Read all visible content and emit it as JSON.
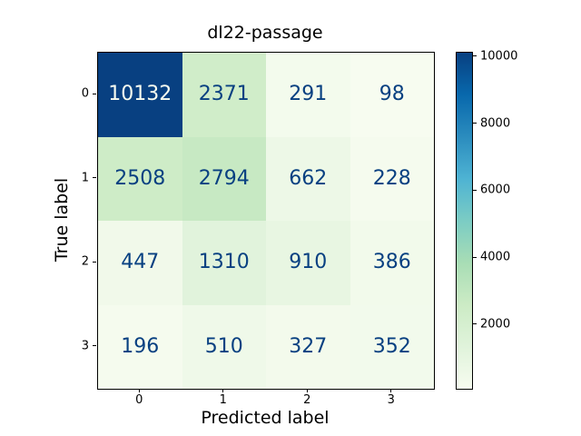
{
  "figure": {
    "background": "#ffffff"
  },
  "chart_data": {
    "type": "heatmap",
    "title": "dl22-passage",
    "xlabel": "Predicted label",
    "ylabel": "True label",
    "x_tick_labels": [
      "0",
      "1",
      "2",
      "3"
    ],
    "y_tick_labels": [
      "0",
      "1",
      "2",
      "3"
    ],
    "rows": [
      [
        10132,
        2371,
        291,
        98
      ],
      [
        2508,
        2794,
        662,
        228
      ],
      [
        447,
        1310,
        910,
        386
      ],
      [
        196,
        510,
        327,
        352
      ]
    ],
    "vmin": 98,
    "vmax": 10132,
    "colormap": "GnBu",
    "colormap_stops": [
      "#f7fcf0",
      "#e0f3db",
      "#ccebc5",
      "#a8ddb5",
      "#7bccc4",
      "#4eb3d3",
      "#2b8cbe",
      "#0868ac",
      "#084081"
    ],
    "colorbar_ticks": [
      "2000",
      "4000",
      "6000",
      "8000",
      "10000"
    ],
    "legend_position": "right-colorbar",
    "grid": false
  },
  "colors": {
    "cell_text_dark": "#084081",
    "cell_text_light": "#f7fcf0",
    "axis_line": "#000000",
    "text": "#000000"
  }
}
